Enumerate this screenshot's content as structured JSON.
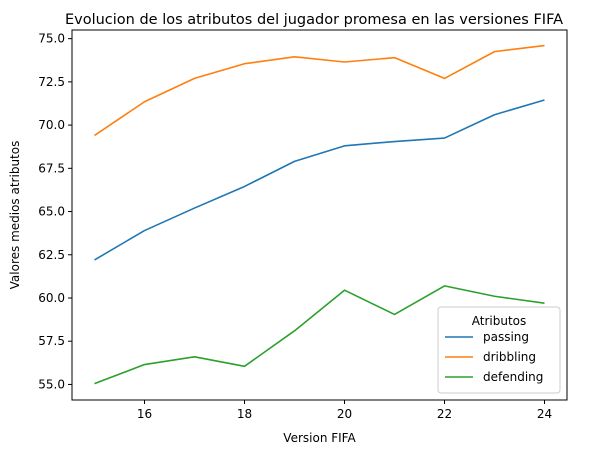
{
  "chart_data": {
    "type": "line",
    "title": "Evolucion de los atributos del jugador promesa en las versiones FIFA",
    "xlabel": "Version FIFA",
    "ylabel": "Valores medios atributos",
    "x": [
      15,
      16,
      17,
      18,
      19,
      20,
      21,
      22,
      23,
      24
    ],
    "xlim": [
      14.55,
      24.45
    ],
    "ylim": [
      54.1,
      75.5
    ],
    "xticks": [
      16,
      18,
      20,
      22,
      24
    ],
    "yticks": [
      55.0,
      57.5,
      60.0,
      62.5,
      65.0,
      67.5,
      70.0,
      72.5,
      75.0
    ],
    "ytick_labels": [
      "55.0",
      "57.5",
      "60.0",
      "62.5",
      "65.0",
      "67.5",
      "70.0",
      "72.5",
      "75.0"
    ],
    "grid": false,
    "legend": {
      "title": "Atributos",
      "placement": "lower-right"
    },
    "series": [
      {
        "name": "passing",
        "color": "#1f77b4",
        "values": [
          62.2,
          63.9,
          65.2,
          66.45,
          67.9,
          68.8,
          69.05,
          69.25,
          70.6,
          71.45
        ]
      },
      {
        "name": "dribbling",
        "color": "#ff7f0e",
        "values": [
          69.4,
          71.35,
          72.7,
          73.55,
          73.95,
          73.65,
          73.9,
          72.7,
          74.25,
          74.6
        ]
      },
      {
        "name": "defending",
        "color": "#2ca02c",
        "values": [
          55.05,
          56.15,
          56.6,
          56.05,
          58.1,
          60.45,
          59.05,
          60.7,
          60.1,
          59.7
        ]
      }
    ]
  }
}
